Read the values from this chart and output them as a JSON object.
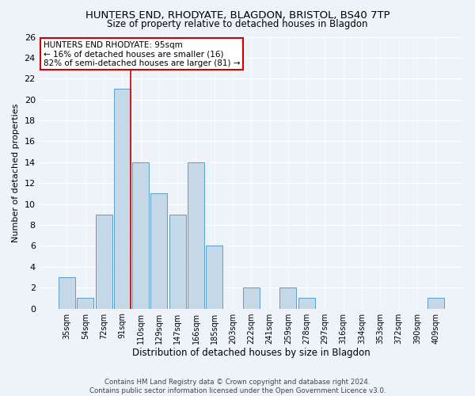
{
  "title": "HUNTERS END, RHODYATE, BLAGDON, BRISTOL, BS40 7TP",
  "subtitle": "Size of property relative to detached houses in Blagdon",
  "xlabel": "Distribution of detached houses by size in Blagdon",
  "ylabel": "Number of detached properties",
  "categories": [
    "35sqm",
    "54sqm",
    "72sqm",
    "91sqm",
    "110sqm",
    "129sqm",
    "147sqm",
    "166sqm",
    "185sqm",
    "203sqm",
    "222sqm",
    "241sqm",
    "259sqm",
    "278sqm",
    "297sqm",
    "316sqm",
    "334sqm",
    "353sqm",
    "372sqm",
    "390sqm",
    "409sqm"
  ],
  "values": [
    3,
    1,
    9,
    21,
    14,
    11,
    9,
    14,
    6,
    0,
    2,
    0,
    2,
    1,
    0,
    0,
    0,
    0,
    0,
    0,
    1
  ],
  "bar_color": "#c5d8e8",
  "bar_edge_color": "#5a9ec9",
  "ylim": [
    0,
    26
  ],
  "yticks": [
    0,
    2,
    4,
    6,
    8,
    10,
    12,
    14,
    16,
    18,
    20,
    22,
    24,
    26
  ],
  "property_line_index": 3,
  "annotation_text": "HUNTERS END RHODYATE: 95sqm\n← 16% of detached houses are smaller (16)\n82% of semi-detached houses are larger (81) →",
  "annotation_box_color": "#ffffff",
  "annotation_box_edge_color": "#cc0000",
  "line_color": "#cc0000",
  "footer1": "Contains HM Land Registry data © Crown copyright and database right 2024.",
  "footer2": "Contains public sector information licensed under the Open Government Licence v3.0.",
  "background_color": "#edf3f8",
  "grid_color": "#ffffff"
}
